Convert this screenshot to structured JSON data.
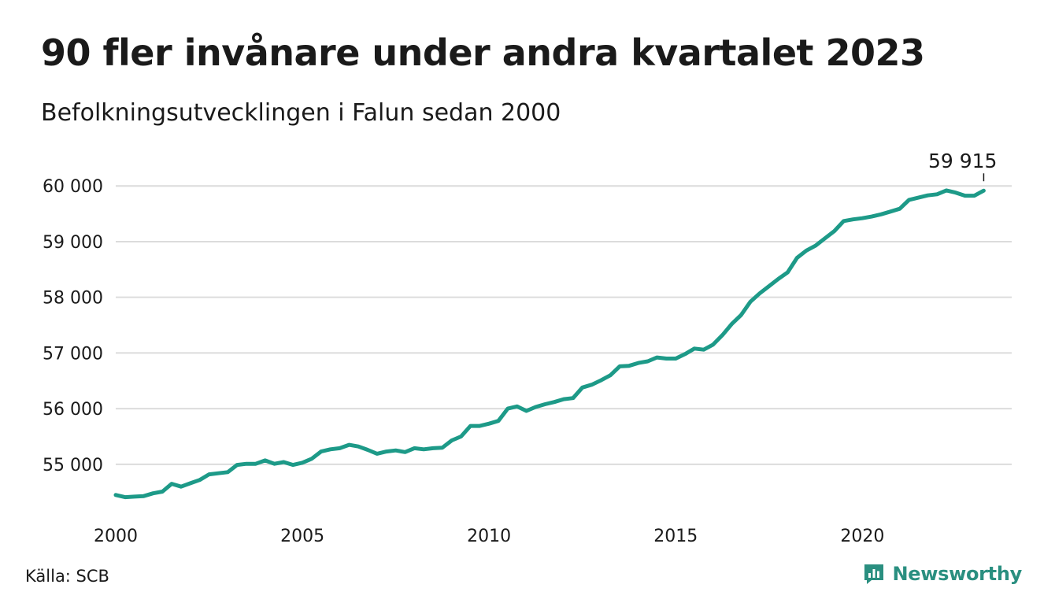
{
  "header": {
    "title": "90 fler invånare under andra kvartalet 2023",
    "subtitle": "Befolkningsutvecklingen i Falun sedan 2000"
  },
  "footer": {
    "source": "Källa: SCB",
    "brand": "Newsworthy",
    "brand_icon": "newsworthy-logo-icon"
  },
  "colors": {
    "line": "#1d9a88",
    "grid": "#dcdcdc",
    "brand": "#2a8f80"
  },
  "chart_data": {
    "type": "line",
    "title": "90 fler invånare under andra kvartalet 2023",
    "subtitle": "Befolkningsutvecklingen i Falun sedan 2000",
    "xlabel": "",
    "ylabel": "",
    "xlim": [
      2000,
      2024
    ],
    "ylim": [
      54150,
      60300
    ],
    "y_ticks": [
      55000,
      56000,
      57000,
      58000,
      59000,
      60000
    ],
    "y_tick_labels": [
      "55 000",
      "56 000",
      "57 000",
      "58 000",
      "59 000",
      "60 000"
    ],
    "x_ticks": [
      2000,
      2005,
      2010,
      2015,
      2020
    ],
    "x_tick_labels": [
      "2000",
      "2005",
      "2010",
      "2015",
      "2020"
    ],
    "grid": "horizontal",
    "legend": "none",
    "end_label": "59 915",
    "series": [
      {
        "x": [
          2000.0,
          2000.25,
          2000.5,
          2000.75,
          2001.0,
          2001.25,
          2001.5,
          2001.75,
          2002.0,
          2002.25,
          2002.5,
          2002.75,
          2003.0,
          2003.25,
          2003.5,
          2003.75,
          2004.0,
          2004.25,
          2004.5,
          2004.75,
          2005.0,
          2005.25,
          2005.5,
          2005.75,
          2006.0,
          2006.25,
          2006.5,
          2006.75,
          2007.0,
          2007.25,
          2007.5,
          2007.75,
          2008.0,
          2008.25,
          2008.5,
          2008.75,
          2009.0,
          2009.25,
          2009.5,
          2009.75,
          2010.0,
          2010.25,
          2010.5,
          2010.75,
          2011.0,
          2011.25,
          2011.5,
          2011.75,
          2012.0,
          2012.25,
          2012.5,
          2012.75,
          2013.0,
          2013.25,
          2013.5,
          2013.75,
          2014.0,
          2014.25,
          2014.5,
          2014.75,
          2015.0,
          2015.25,
          2015.5,
          2015.75,
          2016.0,
          2016.25,
          2016.5,
          2016.75,
          2017.0,
          2017.25,
          2017.5,
          2017.75,
          2018.0,
          2018.25,
          2018.5,
          2018.75,
          2019.0,
          2019.25,
          2019.5,
          2019.75,
          2020.0,
          2020.25,
          2020.5,
          2020.75,
          2021.0,
          2021.25,
          2021.5,
          2021.75,
          2022.0,
          2022.25,
          2022.5,
          2022.75,
          2023.0,
          2023.25
        ],
        "values": [
          54450,
          54410,
          54420,
          54430,
          54480,
          54510,
          54650,
          54600,
          54660,
          54720,
          54820,
          54840,
          54860,
          54990,
          55010,
          55010,
          55070,
          55010,
          55040,
          54990,
          55030,
          55100,
          55230,
          55270,
          55290,
          55350,
          55320,
          55260,
          55190,
          55230,
          55250,
          55220,
          55290,
          55270,
          55290,
          55300,
          55430,
          55500,
          55690,
          55690,
          55730,
          55780,
          56000,
          56040,
          55960,
          56030,
          56080,
          56120,
          56170,
          56190,
          56380,
          56430,
          56510,
          56600,
          56760,
          56770,
          56820,
          56850,
          56920,
          56900,
          56900,
          56980,
          57080,
          57060,
          57150,
          57320,
          57520,
          57680,
          57920,
          58070,
          58200,
          58330,
          58450,
          58710,
          58840,
          58930,
          59060,
          59190,
          59370,
          59400,
          59420,
          59450,
          59490,
          59540,
          59590,
          59750,
          59790,
          59830,
          59850,
          59920,
          59880,
          59825,
          59825,
          59915
        ]
      }
    ]
  }
}
